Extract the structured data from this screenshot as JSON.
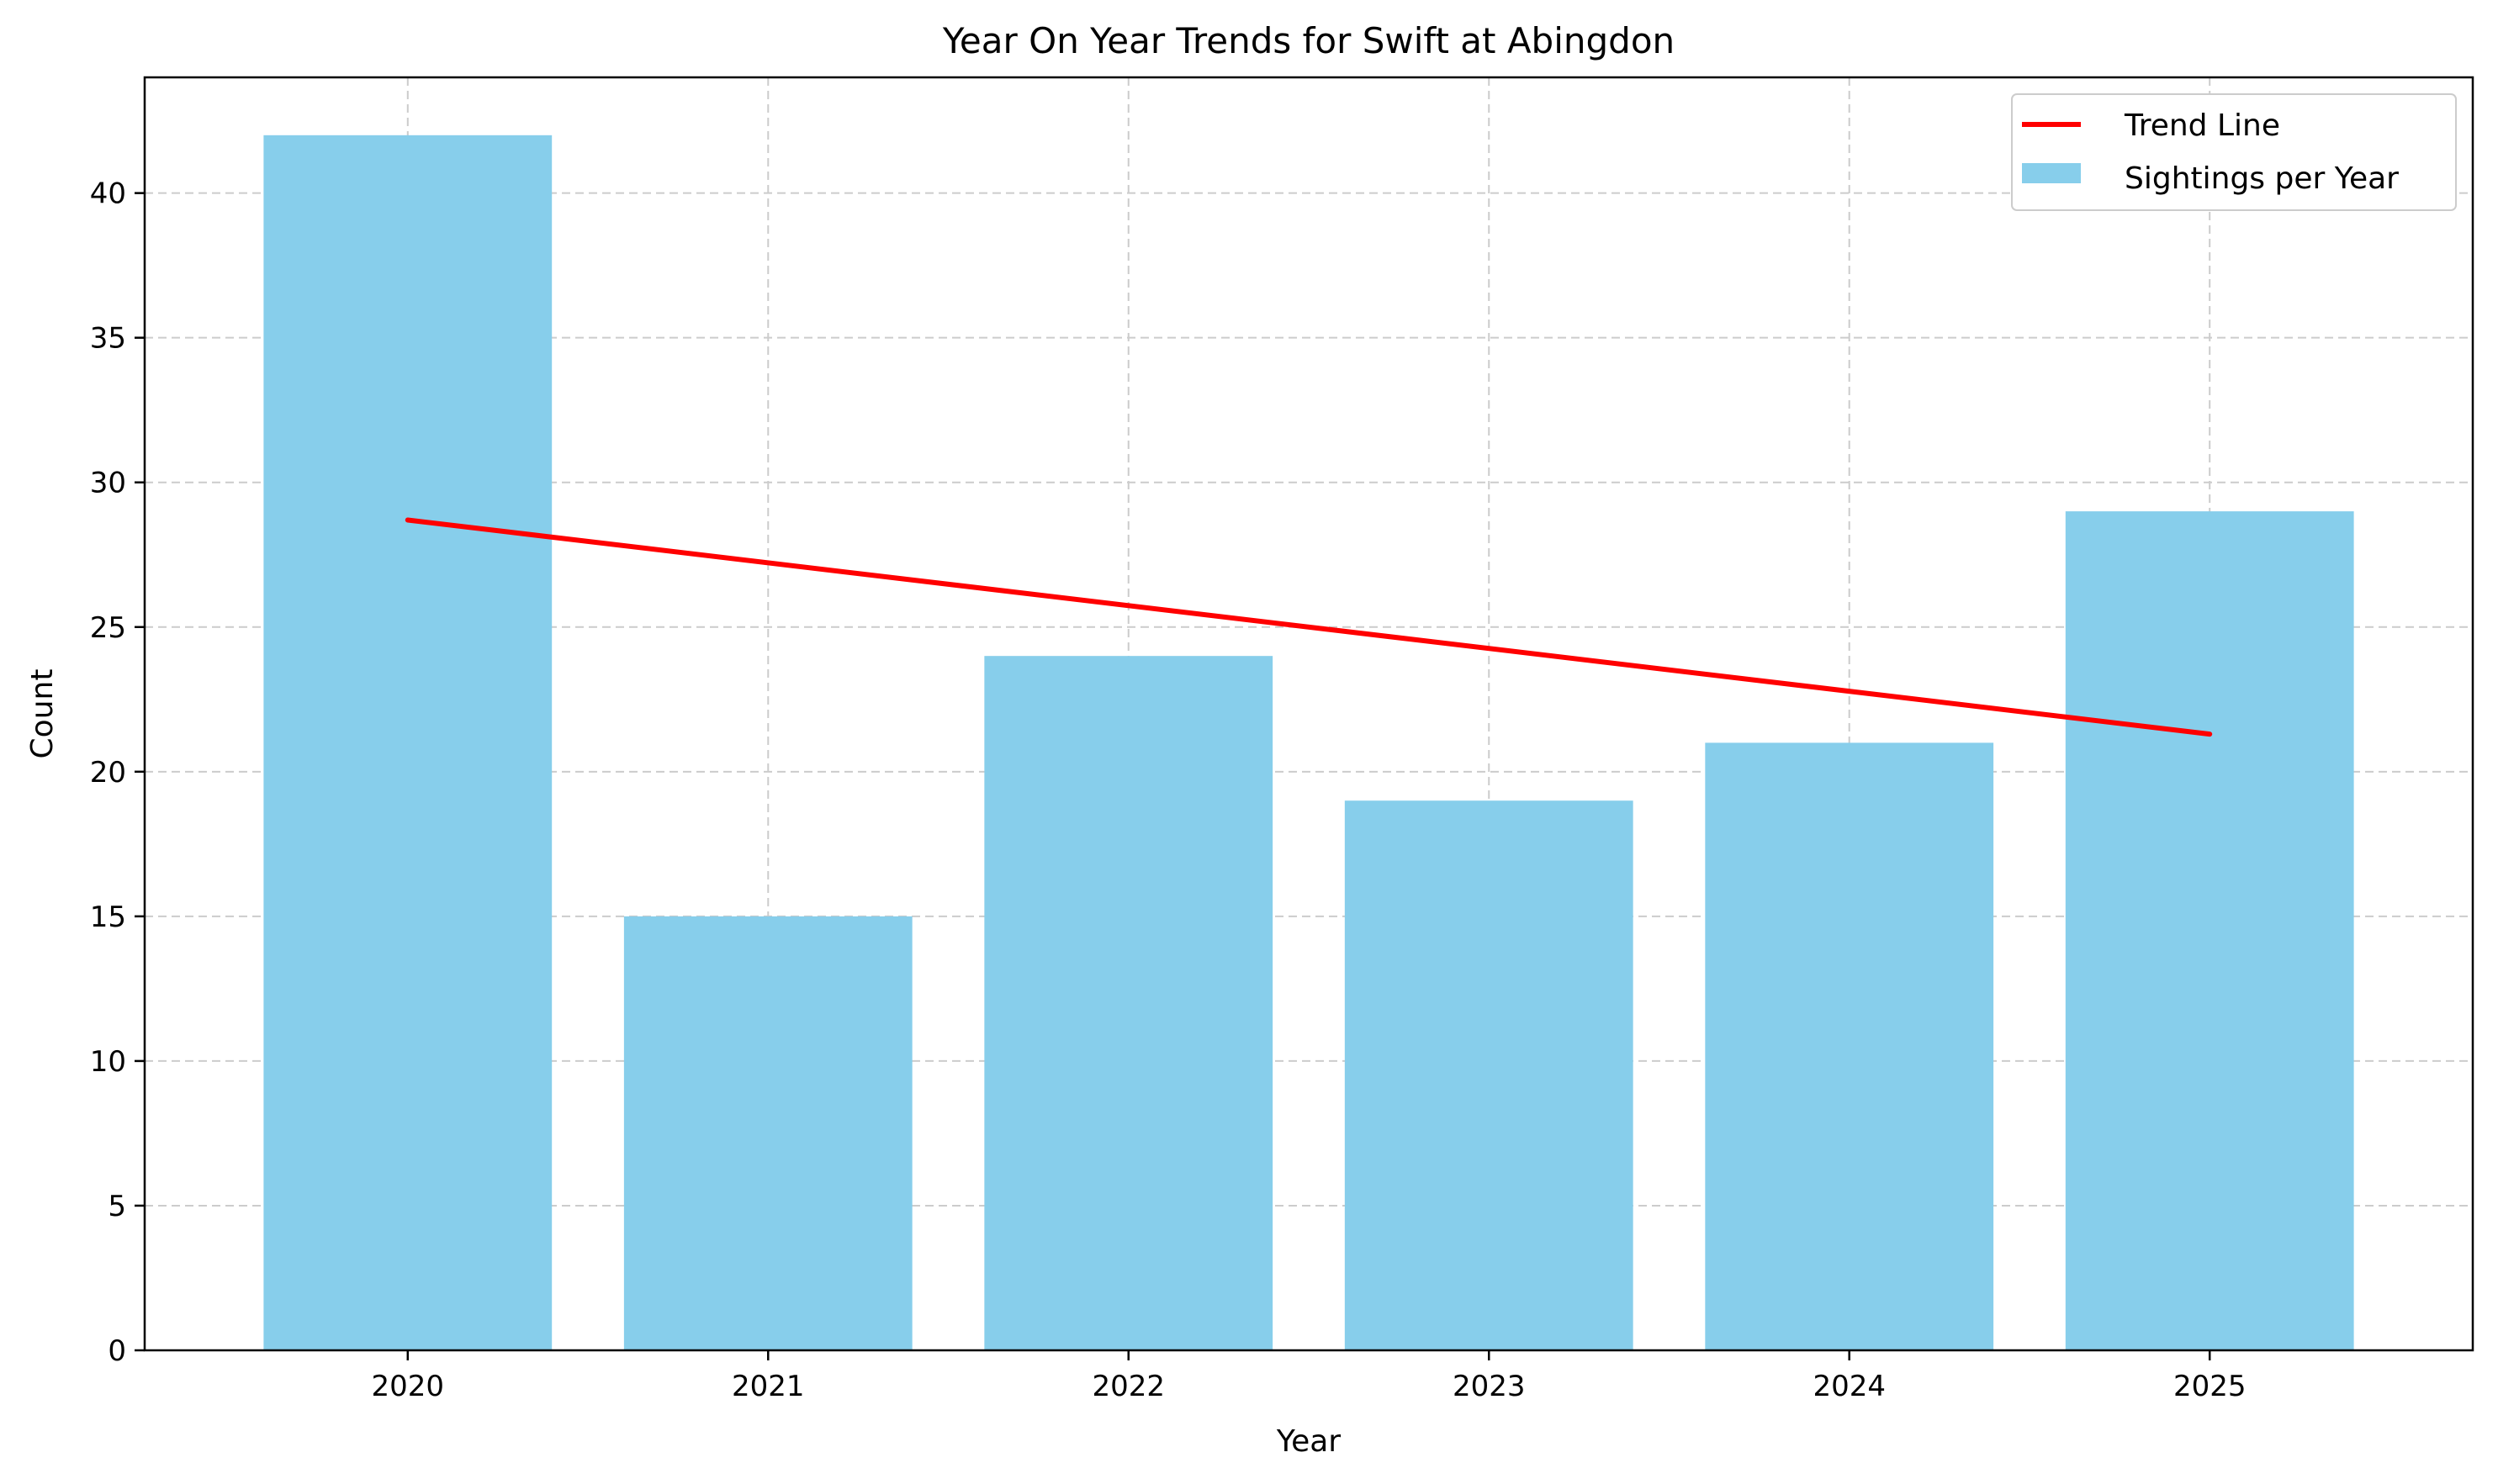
{
  "chart_data": {
    "type": "bar",
    "title": "Year On Year Trends for Swift at Abingdon",
    "xlabel": "Year",
    "ylabel": "Count",
    "categories": [
      "2020",
      "2021",
      "2022",
      "2023",
      "2024",
      "2025"
    ],
    "series": [
      {
        "name": "Sightings per Year",
        "type": "bar",
        "values": [
          42,
          15,
          24,
          19,
          21,
          29
        ]
      }
    ],
    "trend": {
      "name": "Trend Line",
      "start": 28.7,
      "end": 21.3
    },
    "ylim": [
      0,
      44
    ],
    "yticks": [
      0,
      5,
      10,
      15,
      20,
      25,
      30,
      35,
      40
    ],
    "grid": true,
    "legend_position": "top-right",
    "colors": {
      "bar": "#87CEEB",
      "trend": "#FF0000",
      "grid": "#cccccc"
    }
  }
}
